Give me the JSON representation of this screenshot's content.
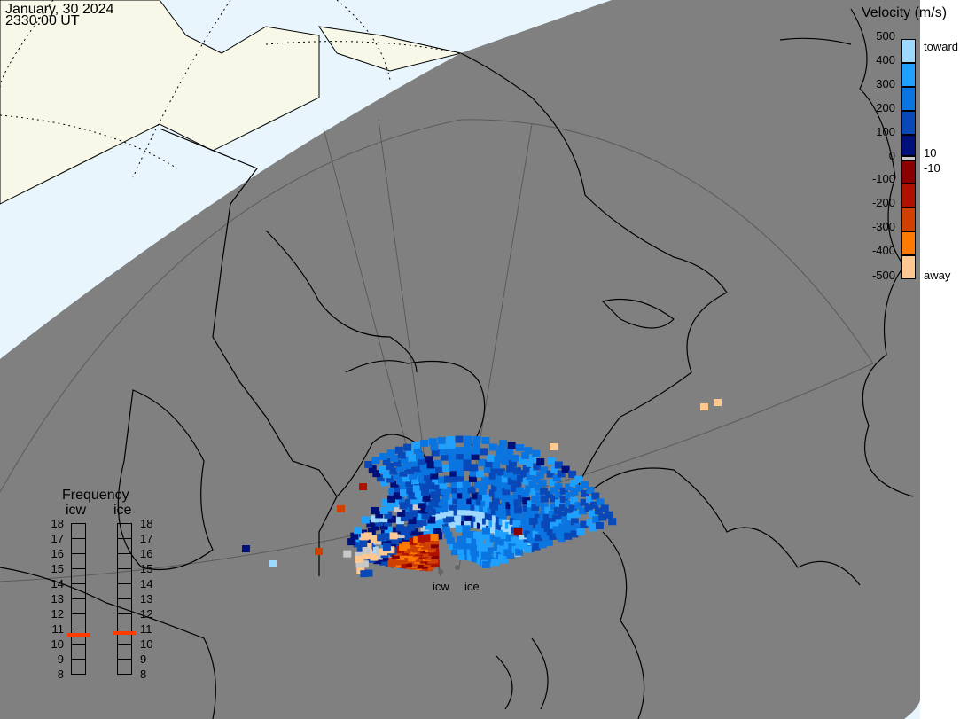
{
  "header": {
    "date": "January, 30 2024",
    "time": "2330:00 UT"
  },
  "colorbar": {
    "title": "Velocity (m/s)",
    "ticks": [
      "500",
      "400",
      "300",
      "200",
      "100",
      "0",
      "-100",
      "-200",
      "-300",
      "-400",
      "-500"
    ],
    "label_toward": "toward",
    "label_away": "away",
    "label_pos_threshold": "10",
    "label_neg_threshold": "-10",
    "colors": [
      "#9fd8ff",
      "#1ea0ff",
      "#0a74e0",
      "#0848b8",
      "#00107a",
      "#c8c8c8",
      "#8a0000",
      "#b01000",
      "#d04000",
      "#ff7a00",
      "#ffc890"
    ]
  },
  "frequency": {
    "title": "Frequency",
    "radars": [
      {
        "name": "icw",
        "value_mhz": 10.6
      },
      {
        "name": "ice",
        "value_mhz": 10.7
      }
    ],
    "ticks": [
      "18",
      "17",
      "16",
      "15",
      "14",
      "13",
      "12",
      "11",
      "10",
      "9",
      "8"
    ],
    "marker_color": "#ff3c00"
  },
  "radar_labels": {
    "icw": "icw",
    "ice": "ice"
  },
  "map_colors": {
    "night": "#808080",
    "day_ocean": "#e8f5fd",
    "day_land": "#f8f8e8"
  }
}
